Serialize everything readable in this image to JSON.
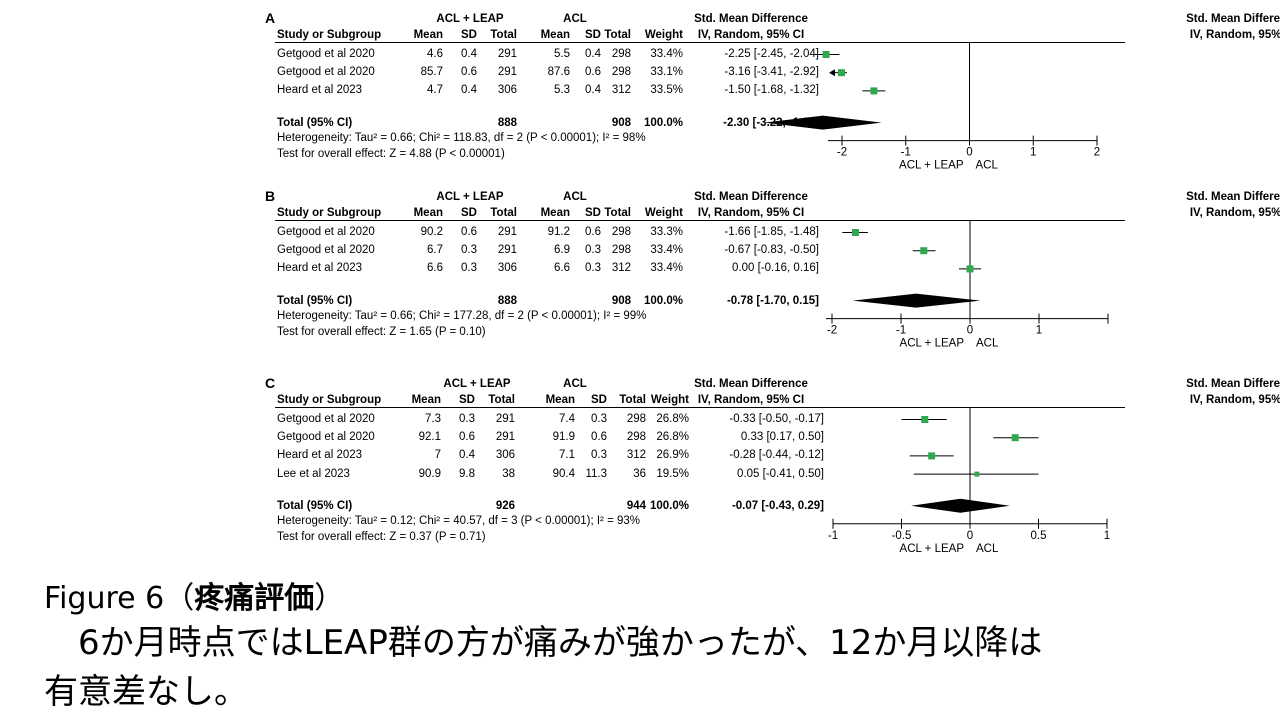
{
  "chart_data": [
    {
      "type": "forest",
      "panel": "A",
      "group1": "ACL + LEAP",
      "group2": "ACL",
      "columns": {
        "study": "Study or Subgroup",
        "mean": "Mean",
        "sd": "SD",
        "total": "Total",
        "weight": "Weight",
        "effect_header": "Std. Mean Difference",
        "effect_sub": "IV, Random, 95% CI"
      },
      "studies": [
        {
          "study": "Getgood et al 2020",
          "mean1": "4.6",
          "sd1": "0.4",
          "n1": "291",
          "mean2": "5.5",
          "sd2": "0.4",
          "n2": "298",
          "weight": "33.4%",
          "ci_text": "-2.25 [-2.45, -2.04]",
          "est": -2.25,
          "lo": -2.45,
          "hi": -2.04
        },
        {
          "study": "Getgood et al 2020",
          "mean1": "85.7",
          "sd1": "0.6",
          "n1": "291",
          "mean2": "87.6",
          "sd2": "0.6",
          "n2": "298",
          "weight": "33.1%",
          "ci_text": "-3.16 [-3.41, -2.92]",
          "est": -3.16,
          "lo": -3.41,
          "hi": -2.92,
          "offscale": true
        },
        {
          "study": "Heard et al 2023",
          "mean1": "4.7",
          "sd1": "0.4",
          "n1": "306",
          "mean2": "5.3",
          "sd2": "0.4",
          "n2": "312",
          "weight": "33.5%",
          "ci_text": "-1.50 [-1.68, -1.32]",
          "est": -1.5,
          "lo": -1.68,
          "hi": -1.32
        }
      ],
      "total": {
        "label": "Total (95% CI)",
        "n1": "888",
        "n2": "908",
        "weight": "100.0%",
        "ci_text": "-2.30 [-3.22, -1.38]",
        "est": -2.3,
        "lo": -3.22,
        "hi": -1.38
      },
      "heterogeneity": "Heterogeneity: Tau² = 0.66; Chi² = 118.83, df = 2 (P < 0.00001); I² = 98%",
      "overall_test": "Test for overall effect: Z = 4.88 (P < 0.00001)",
      "axis": {
        "min": -2,
        "max": 2,
        "ticks": [
          -2,
          -1,
          0,
          1,
          2
        ],
        "tick_labels": [
          "-2",
          "-1",
          "0",
          "1",
          "2"
        ]
      },
      "favours": [
        "ACL + LEAP",
        "ACL"
      ]
    },
    {
      "type": "forest",
      "panel": "B",
      "group1": "ACL + LEAP",
      "group2": "ACL",
      "columns": {
        "study": "Study or Subgroup",
        "mean": "Mean",
        "sd": "SD",
        "total": "Total",
        "weight": "Weight",
        "effect_header": "Std. Mean Difference",
        "effect_sub": "IV, Random, 95% CI"
      },
      "studies": [
        {
          "study": "Getgood et al 2020",
          "mean1": "90.2",
          "sd1": "0.6",
          "n1": "291",
          "mean2": "91.2",
          "sd2": "0.6",
          "n2": "298",
          "weight": "33.3%",
          "ci_text": "-1.66 [-1.85, -1.48]",
          "est": -1.66,
          "lo": -1.85,
          "hi": -1.48
        },
        {
          "study": "Getgood et al 2020",
          "mean1": "6.7",
          "sd1": "0.3",
          "n1": "291",
          "mean2": "6.9",
          "sd2": "0.3",
          "n2": "298",
          "weight": "33.4%",
          "ci_text": "-0.67 [-0.83, -0.50]",
          "est": -0.67,
          "lo": -0.83,
          "hi": -0.5
        },
        {
          "study": "Heard et al 2023",
          "mean1": "6.6",
          "sd1": "0.3",
          "n1": "306",
          "mean2": "6.6",
          "sd2": "0.3",
          "n2": "312",
          "weight": "33.4%",
          "ci_text": "0.00 [-0.16, 0.16]",
          "est": 0.0,
          "lo": -0.16,
          "hi": 0.16
        }
      ],
      "total": {
        "label": "Total (95% CI)",
        "n1": "888",
        "n2": "908",
        "weight": "100.0%",
        "ci_text": "-0.78 [-1.70, 0.15]",
        "est": -0.78,
        "lo": -1.7,
        "hi": 0.15
      },
      "heterogeneity": "Heterogeneity: Tau² = 0.66; Chi² = 177.28, df = 2 (P < 0.00001); I² = 99%",
      "overall_test": "Test for overall effect: Z = 1.65 (P = 0.10)",
      "axis": {
        "min": -2,
        "max": 2,
        "ticks": [
          -2,
          -1,
          0,
          1,
          2
        ],
        "tick_labels": [
          "-2",
          "-1",
          "0",
          "1",
          ""
        ]
      },
      "favours": [
        "ACL + LEAP",
        "ACL"
      ]
    },
    {
      "type": "forest",
      "panel": "C",
      "group1": "ACL + LEAP",
      "group2": "ACL",
      "columns": {
        "study": "Study or Subgroup",
        "mean": "Mean",
        "sd": "SD",
        "total": "Total",
        "weight": "Weight",
        "effect_header": "Std. Mean Difference",
        "effect_sub": "IV, Random, 95% CI"
      },
      "studies": [
        {
          "study": "Getgood et al 2020",
          "mean1": "7.3",
          "sd1": "0.3",
          "n1": "291",
          "mean2": "7.4",
          "sd2": "0.3",
          "n2": "298",
          "weight": "26.8%",
          "ci_text": "-0.33 [-0.50, -0.17]",
          "est": -0.33,
          "lo": -0.5,
          "hi": -0.17
        },
        {
          "study": "Getgood et al 2020",
          "mean1": "92.1",
          "sd1": "0.6",
          "n1": "291",
          "mean2": "91.9",
          "sd2": "0.6",
          "n2": "298",
          "weight": "26.8%",
          "ci_text": "0.33 [0.17, 0.50]",
          "est": 0.33,
          "lo": 0.17,
          "hi": 0.5
        },
        {
          "study": "Heard et al 2023",
          "mean1": "7",
          "sd1": "0.4",
          "n1": "306",
          "mean2": "7.1",
          "sd2": "0.3",
          "n2": "312",
          "weight": "26.9%",
          "ci_text": "-0.28 [-0.44, -0.12]",
          "est": -0.28,
          "lo": -0.44,
          "hi": -0.12
        },
        {
          "study": "Lee et al 2023",
          "mean1": "90.9",
          "sd1": "9.8",
          "n1": "38",
          "mean2": "90.4",
          "sd2": "11.3",
          "n2": "36",
          "weight": "19.5%",
          "ci_text": "0.05 [-0.41, 0.50]",
          "est": 0.05,
          "lo": -0.41,
          "hi": 0.5
        }
      ],
      "total": {
        "label": "Total (95% CI)",
        "n1": "926",
        "n2": "944",
        "weight": "100.0%",
        "ci_text": "-0.07 [-0.43, 0.29]",
        "est": -0.07,
        "lo": -0.43,
        "hi": 0.29
      },
      "heterogeneity": "Heterogeneity: Tau² = 0.12; Chi² = 40.57, df = 3 (P < 0.00001); I² = 93%",
      "overall_test": "Test for overall effect: Z = 0.37 (P = 0.71)",
      "axis": {
        "min": -1,
        "max": 1,
        "ticks": [
          -1,
          -0.5,
          0,
          0.5,
          1
        ],
        "tick_labels": [
          "-1",
          "-0.5",
          "0",
          "0.5",
          "1"
        ]
      },
      "favours": [
        "ACL + LEAP",
        "ACL"
      ]
    }
  ],
  "caption": {
    "figure_label": "Figure 6（",
    "figure_title": "疼痛評価",
    "figure_close": "）",
    "line2": "　6か月時点ではLEAP群の方が痛みが強かったが、12か月以降は",
    "line3": "有意差なし。"
  },
  "colors": {
    "marker": "#2fa84f",
    "diamond": "#000000",
    "line": "#000000",
    "text": "#000000"
  }
}
